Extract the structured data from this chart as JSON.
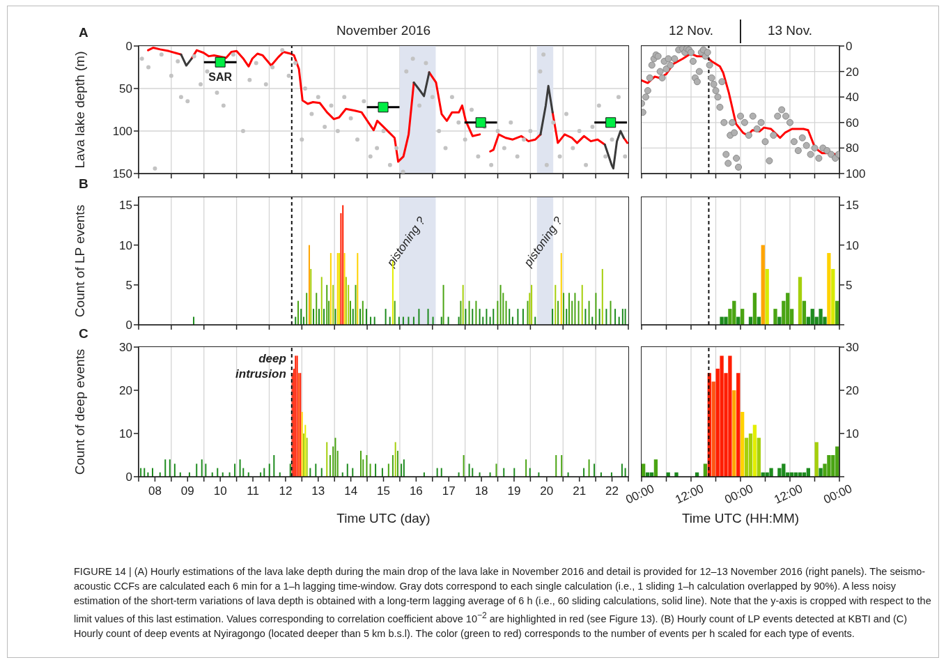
{
  "chart_data": [
    {
      "type": "line",
      "title": "November 2016",
      "ylabel": "Lava lake depth (m)",
      "annotations": [
        "A"
      ],
      "xlim": [
        8,
        23
      ],
      "xticks": [
        {
          "value": 8,
          "label": null
        },
        {
          "value": 9,
          "label": null
        },
        {
          "value": 10,
          "label": null
        },
        {
          "value": 11,
          "label": null
        },
        {
          "value": 12,
          "label": null
        },
        {
          "value": 13,
          "label": null
        },
        {
          "value": 14,
          "label": null
        },
        {
          "value": 15,
          "label": null
        },
        {
          "value": 16,
          "label": null
        },
        {
          "value": 17,
          "label": null
        },
        {
          "value": 18,
          "label": null
        },
        {
          "value": 19,
          "label": null
        },
        {
          "value": 20,
          "label": null
        },
        {
          "value": 21,
          "label": null
        },
        {
          "value": 22,
          "label": null
        },
        {
          "value": 23,
          "label": null
        }
      ],
      "ylim": [
        150,
        0
      ],
      "yticks": [
        0,
        50,
        100,
        150
      ],
      "grid": true,
      "tick_labels": "y",
      "bands": [
        {
          "axis": "x",
          "from": 16.0,
          "to": 17.1,
          "color": "#dfe4f0"
        },
        {
          "axis": "x",
          "from": 20.2,
          "to": 20.7,
          "color": "#dfe4f0"
        }
      ],
      "ref_lines": [
        {
          "axis": "x",
          "value": 12.69,
          "line_style": "dashed",
          "color": "#111111"
        }
      ],
      "series": [
        {
          "type": "scatter",
          "marker": "circle",
          "color": "#c3c3c3",
          "x": [
            8.1,
            8.3,
            8.5,
            8.7,
            9.0,
            9.2,
            9.3,
            9.5,
            9.7,
            9.9,
            10.1,
            10.4,
            10.6,
            10.9,
            11.2,
            11.4,
            11.6,
            11.9,
            12.1,
            12.4,
            12.6,
            12.8,
            13.0,
            13.1,
            13.3,
            13.5,
            13.7,
            13.9,
            14.1,
            14.3,
            14.5,
            14.7,
            14.9,
            15.1,
            15.3,
            15.5,
            15.7,
            15.9,
            16.1,
            16.2,
            16.4,
            16.6,
            16.8,
            17.0,
            17.2,
            17.4,
            17.6,
            17.8,
            18.0,
            18.2,
            18.4,
            18.6,
            18.8,
            19.0,
            19.2,
            19.4,
            19.6,
            19.8,
            20.0,
            20.3,
            20.4,
            20.5,
            20.7,
            20.9,
            21.1,
            21.3,
            21.5,
            21.7,
            21.9,
            22.1,
            22.3,
            22.5,
            22.7,
            22.9
          ],
          "values": [
            15,
            25,
            144,
            10,
            35,
            18,
            60,
            65,
            12,
            45,
            30,
            55,
            70,
            10,
            100,
            40,
            20,
            45,
            25,
            5,
            35,
            20,
            110,
            50,
            80,
            60,
            95,
            70,
            100,
            60,
            85,
            110,
            65,
            130,
            120,
            100,
            140,
            120,
            148,
            30,
            15,
            70,
            20,
            60,
            100,
            120,
            60,
            90,
            110,
            75,
            130,
            95,
            140,
            100,
            120,
            90,
            130,
            110,
            100,
            30,
            10,
            140,
            90,
            130,
            80,
            120,
            100,
            140,
            95,
            70,
            130,
            110,
            60,
            130
          ]
        },
        {
          "color": "#ff0000",
          "x": [
            8.29,
            8.45,
            8.66,
            8.93,
            9.3,
            9.46,
            9.62,
            9.78,
            9.99,
            10.15,
            10.31,
            10.68,
            10.84,
            11.0,
            11.21,
            11.37,
            11.48,
            11.64,
            11.8,
            12.06,
            12.28,
            12.44,
            12.65,
            12.76,
            12.91,
            13.02,
            13.18,
            13.34,
            13.55,
            13.77,
            13.98,
            14.14,
            14.35,
            14.62,
            14.83,
            15.04,
            15.2,
            15.31,
            15.47,
            15.68,
            15.84,
            15.95,
            16.11,
            16.27,
            16.43,
            16.59,
            16.74,
            16.9,
            17.11,
            17.28,
            17.44,
            17.6,
            17.81,
            17.91,
            18.02,
            18.23,
            18.45,
            18.55,
            18.77,
            18.87,
            19.03,
            19.24,
            19.46,
            19.72,
            19.94,
            20.15,
            20.31,
            20.47,
            20.55,
            20.68,
            20.84,
            21.05,
            21.27,
            21.43,
            21.64,
            21.85,
            22.06,
            22.28,
            22.49,
            22.54,
            22.65,
            22.76,
            22.86,
            22.97
          ],
          "values": [
            5,
            2,
            4,
            6,
            10,
            null,
            15,
            5,
            8,
            12,
            11,
            14,
            7,
            6,
            15,
            24,
            15,
            9,
            11,
            23,
            13,
            7,
            9,
            11,
            27,
            64,
            68,
            66,
            67,
            78,
            86,
            84,
            74,
            76,
            78,
            90,
            99,
            88,
            94,
            102,
            108,
            136,
            130,
            104,
            43,
            null,
            null,
            31,
            43,
            80,
            88,
            78,
            78,
            70,
            88,
            106,
            104,
            null,
            124,
            122,
            104,
            108,
            110,
            106,
            112,
            110,
            104,
            null,
            null,
            78,
            114,
            104,
            108,
            114,
            106,
            112,
            110,
            116,
            null,
            null,
            null,
            null,
            108,
            114
          ]
        },
        {
          "color": "#3a3a3a",
          "x": [
            9.3,
            9.46,
            9.62,
            13.0,
            16.43,
            16.59,
            16.74,
            16.9,
            18.0,
            20.31,
            20.47,
            20.55,
            20.68,
            21.0,
            22.28,
            22.49,
            22.54,
            22.65,
            22.76,
            22.86
          ],
          "values": [
            10,
            23,
            15,
            null,
            43,
            51,
            59,
            31,
            null,
            104,
            70,
            47,
            78,
            null,
            116,
            140,
            144,
            112,
            100,
            108
          ]
        },
        {
          "type": "scatter",
          "name": "SAR",
          "marker": "square",
          "color": "#00ee44",
          "x": [
            10.5,
            15.49,
            18.48,
            22.46
          ],
          "values": [
            19,
            72,
            90,
            90
          ],
          "xerrors": [
            0.5,
            0.5,
            0.5,
            0.5
          ]
        }
      ]
    },
    {
      "type": "line",
      "annotations": [
        "12 Nov.",
        "13 Nov."
      ],
      "xlim": [
        "2016-11-12T00:00",
        "2016-11-14T00:00"
      ],
      "xticks": [
        {
          "value": "2016-11-12T00:00",
          "label": null
        },
        {
          "value": "2016-11-12T06:00",
          "label": null
        },
        {
          "value": "2016-11-12T12:00",
          "label": null
        },
        {
          "value": "2016-11-12T18:00",
          "label": null
        },
        {
          "value": "2016-11-13T00:00",
          "label": null
        },
        {
          "value": "2016-11-13T06:00",
          "label": null
        },
        {
          "value": "2016-11-13T12:00",
          "label": null
        },
        {
          "value": "2016-11-13T18:00",
          "label": null
        },
        {
          "value": "2016-11-14T00:00",
          "label": null
        }
      ],
      "ylim": [
        100,
        0
      ],
      "yticks": [
        0,
        20,
        40,
        60,
        80,
        100
      ],
      "grid": true,
      "tick_labels": "y",
      "ref_lines": [
        {
          "axis": "x",
          "value": "2016-11-12T16:18",
          "line_style": "dashed",
          "color": "#111111"
        }
      ],
      "series": [
        {
          "type": "scatter",
          "marker": "circle",
          "color": "#b0b0b0",
          "x": [
            "2016-11-12T00:00",
            "2016-11-12T00:18",
            "2016-11-12T01:00",
            "2016-11-12T01:30",
            "2016-11-12T02:00",
            "2016-11-12T02:30",
            "2016-11-12T03:00",
            "2016-11-12T03:30",
            "2016-11-12T04:00",
            "2016-11-12T04:30",
            "2016-11-12T05:00",
            "2016-11-12T05:30",
            "2016-11-12T06:00",
            "2016-11-12T06:30",
            "2016-11-12T07:00",
            "2016-11-12T08:00",
            "2016-11-12T09:00",
            "2016-11-12T10:00",
            "2016-11-12T10:30",
            "2016-11-12T11:00",
            "2016-11-12T11:30",
            "2016-11-12T12:00",
            "2016-11-12T12:30",
            "2016-11-12T13:00",
            "2016-11-12T13:30",
            "2016-11-12T14:00",
            "2016-11-12T14:30",
            "2016-11-12T15:00",
            "2016-11-12T15:30",
            "2016-11-12T16:00",
            "2016-11-12T16:30",
            "2016-11-12T17:00",
            "2016-11-12T17:30",
            "2016-11-12T18:00",
            "2016-11-12T18:30",
            "2016-11-12T19:00",
            "2016-11-12T19:30",
            "2016-11-12T20:00",
            "2016-11-12T20:30",
            "2016-11-12T21:00",
            "2016-11-12T21:30",
            "2016-11-12T22:00",
            "2016-11-12T22:30",
            "2016-11-12T23:00",
            "2016-11-12T23:30",
            "2016-11-13T00:00",
            "2016-11-13T01:00",
            "2016-11-13T02:00",
            "2016-11-13T03:00",
            "2016-11-13T04:00",
            "2016-11-13T05:00",
            "2016-11-13T06:00",
            "2016-11-13T07:00",
            "2016-11-13T08:00",
            "2016-11-13T09:00",
            "2016-11-13T10:00",
            "2016-11-13T11:00",
            "2016-11-13T12:00",
            "2016-11-13T13:00",
            "2016-11-13T14:00",
            "2016-11-13T15:00",
            "2016-11-13T16:00",
            "2016-11-13T17:00",
            "2016-11-13T18:00",
            "2016-11-13T19:00",
            "2016-11-13T20:00",
            "2016-11-13T21:00",
            "2016-11-13T22:00",
            "2016-11-13T23:00",
            "2016-11-13T23:48"
          ],
          "values": [
            45,
            52,
            40,
            35,
            25,
            15,
            10,
            7,
            8,
            20,
            25,
            12,
            18,
            10,
            15,
            10,
            3,
            2,
            5,
            2,
            3,
            5,
            12,
            25,
            28,
            20,
            5,
            3,
            8,
            5,
            15,
            25,
            30,
            35,
            40,
            48,
            28,
            60,
            85,
            92,
            70,
            60,
            68,
            88,
            95,
            55,
            60,
            70,
            55,
            65,
            60,
            75,
            90,
            70,
            55,
            50,
            55,
            60,
            75,
            82,
            72,
            78,
            85,
            80,
            88,
            80,
            82,
            85,
            88,
            85
          ]
        },
        {
          "color": "#ff0000",
          "x": [
            "2016-11-12T00:00",
            "2016-11-12T01:30",
            "2016-11-12T03:12",
            "2016-11-12T04:18",
            "2016-11-12T06:00",
            "2016-11-12T07:42",
            "2016-11-12T10:00",
            "2016-11-12T11:54",
            "2016-11-12T13:24",
            "2016-11-12T14:30",
            "2016-11-12T15:54",
            "2016-11-12T17:00",
            "2016-11-12T19:00",
            "2016-11-12T19:48",
            "2016-11-12T21:12",
            "2016-11-12T22:54",
            "2016-11-13T00:36",
            "2016-11-13T01:42",
            "2016-11-13T02:54",
            "2016-11-13T04:36",
            "2016-11-13T05:42",
            "2016-11-13T07:24",
            "2016-11-13T09:36",
            "2016-11-13T10:48",
            "2016-11-13T12:30",
            "2016-11-13T14:06",
            "2016-11-13T15:18",
            "2016-11-13T16:24",
            "2016-11-13T18:06",
            "2016-11-13T19:48",
            "2016-11-13T21:30",
            "2016-11-13T23:12"
          ],
          "values": [
            27,
            29,
            24,
            25,
            22,
            14,
            10,
            6,
            8,
            8,
            9,
            12,
            16,
            21,
            37,
            61,
            68,
            70,
            66,
            67,
            64,
            65,
            72,
            68,
            65,
            65,
            65,
            66,
            80,
            84,
            84,
            85
          ]
        }
      ]
    },
    {
      "type": "bar",
      "ylabel": "Count of LP events",
      "annotations": [
        "B"
      ],
      "xlim": [
        8,
        23
      ],
      "xticks": [
        {
          "value": 8,
          "label": null
        },
        {
          "value": 9,
          "label": null
        },
        {
          "value": 10,
          "label": null
        },
        {
          "value": 11,
          "label": null
        },
        {
          "value": 12,
          "label": null
        },
        {
          "value": 13,
          "label": null
        },
        {
          "value": 14,
          "label": null
        },
        {
          "value": 15,
          "label": null
        },
        {
          "value": 16,
          "label": null
        },
        {
          "value": 17,
          "label": null
        },
        {
          "value": 18,
          "label": null
        },
        {
          "value": 19,
          "label": null
        },
        {
          "value": 20,
          "label": null
        },
        {
          "value": 21,
          "label": null
        },
        {
          "value": 22,
          "label": null
        },
        {
          "value": 23,
          "label": null
        }
      ],
      "ylim": [
        0,
        16
      ],
      "yticks": [
        0,
        5,
        10,
        15
      ],
      "grid": "x",
      "tick_labels": "y",
      "bands": [
        {
          "axis": "x",
          "from": 16.0,
          "to": 17.1,
          "color": "#dfe4f0",
          "label": "pistoning ?"
        },
        {
          "axis": "x",
          "from": 20.2,
          "to": 20.7,
          "color": "#dfe4f0",
          "label": "pistoning ?"
        }
      ],
      "ref_lines": [
        {
          "axis": "x",
          "value": 12.69,
          "line_style": "dashed",
          "color": "#111111"
        }
      ],
      "series": [
        {
          "x": [
            9.69,
            12.81,
            12.89,
            12.98,
            13.06,
            13.15,
            13.23,
            13.28,
            13.36,
            13.45,
            13.53,
            13.61,
            13.68,
            13.77,
            13.83,
            13.89,
            13.96,
            14.03,
            14.1,
            14.15,
            14.2,
            14.26,
            14.31,
            14.36,
            14.43,
            14.49,
            14.57,
            14.65,
            14.71,
            14.79,
            14.87,
            14.98,
            15.11,
            15.23,
            15.57,
            15.7,
            15.79,
            15.85,
            15.98,
            16.11,
            16.27,
            16.43,
            16.59,
            16.87,
            17.02,
            17.28,
            17.34,
            17.49,
            17.81,
            17.87,
            17.94,
            18.02,
            18.13,
            18.23,
            18.34,
            18.45,
            18.55,
            18.66,
            18.77,
            18.87,
            19.0,
            19.09,
            19.17,
            19.26,
            19.36,
            19.46,
            19.62,
            19.78,
            19.92,
            19.98,
            20.04,
            20.15,
            20.68,
            20.77,
            20.85,
            20.95,
            21.02,
            21.11,
            21.19,
            21.28,
            21.37,
            21.48,
            21.59,
            21.69,
            21.8,
            21.9,
            22.01,
            22.12,
            22.21,
            22.33,
            22.46,
            22.6,
            22.72,
            22.83,
            22.91
          ],
          "values": [
            1,
            1,
            3,
            2,
            1,
            4,
            10,
            7,
            2,
            4,
            2,
            6,
            2,
            5,
            3,
            9,
            5,
            2,
            9,
            9,
            14,
            15,
            9,
            6,
            5,
            3,
            2,
            5,
            9,
            2,
            3,
            2,
            1,
            1,
            2,
            1,
            8,
            3,
            1,
            1,
            1,
            1,
            2,
            2,
            1,
            1,
            5,
            1,
            1,
            3,
            5,
            2,
            3,
            2,
            3,
            2,
            1,
            2,
            1,
            2,
            3,
            5,
            4,
            3,
            2,
            1,
            2,
            2,
            3,
            4,
            5,
            1,
            2,
            5,
            3,
            9,
            4,
            2,
            4,
            3,
            4,
            3,
            5,
            2,
            3,
            1,
            4,
            2,
            7,
            2,
            3,
            2,
            1,
            2,
            2
          ],
          "colors": [
            "#1e8b1e",
            "#1e8b1e",
            "#4aa413",
            "#1e8b1e",
            "#1e8b1e",
            "#4aa413",
            "#ffa400",
            "#a5cf0c",
            "#1e8b1e",
            "#4aa413",
            "#1e8b1e",
            "#a5cf0c",
            "#1e8b1e",
            "#4aa413",
            "#4aa413",
            "#ffd200",
            "#a5cf0c",
            "#1e8b1e",
            "#ffd200",
            "#e3ee00",
            "#ff1d00",
            "#ff1d00",
            "#ffd200",
            "#a5cf0c",
            "#a5cf0c",
            "#4aa413",
            "#1e8b1e",
            "#4aa413",
            "#ffd200",
            "#1e8b1e",
            "#4aa413",
            "#1e8b1e",
            "#1e8b1e",
            "#1e8b1e",
            "#1e8b1e",
            "#1e8b1e",
            "#e3ee00",
            "#4aa413",
            "#1e8b1e",
            "#1e8b1e",
            "#1e8b1e",
            "#1e8b1e",
            "#1e8b1e",
            "#1e8b1e",
            "#1e8b1e",
            "#1e8b1e",
            "#4aa413",
            "#1e8b1e",
            "#1e8b1e",
            "#4aa413",
            "#a5cf0c",
            "#1e8b1e",
            "#4aa413",
            "#1e8b1e",
            "#4aa413",
            "#1e8b1e",
            "#1e8b1e",
            "#1e8b1e",
            "#1e8b1e",
            "#1e8b1e",
            "#4aa413",
            "#4aa413",
            "#4aa413",
            "#4aa413",
            "#1e8b1e",
            "#1e8b1e",
            "#1e8b1e",
            "#1e8b1e",
            "#4aa413",
            "#a5cf0c",
            "#a5cf0c",
            "#1e8b1e",
            "#1e8b1e",
            "#a5cf0c",
            "#4aa413",
            "#ffd200",
            "#4aa413",
            "#1e8b1e",
            "#4aa413",
            "#4aa413",
            "#4aa413",
            "#4aa413",
            "#a5cf0c",
            "#1e8b1e",
            "#4aa413",
            "#1e8b1e",
            "#4aa413",
            "#1e8b1e",
            "#a5cf0c",
            "#1e8b1e",
            "#4aa413",
            "#1e8b1e",
            "#1e8b1e",
            "#1e8b1e",
            "#1e8b1e"
          ]
        }
      ]
    },
    {
      "type": "bar",
      "xlim": [
        "2016-11-12T00:00",
        "2016-11-14T00:00"
      ],
      "xticks": [
        {
          "value": "2016-11-12T00:00",
          "label": null
        },
        {
          "value": "2016-11-12T06:00",
          "label": null
        },
        {
          "value": "2016-11-12T12:00",
          "label": null
        },
        {
          "value": "2016-11-12T18:00",
          "label": null
        },
        {
          "value": "2016-11-13T00:00",
          "label": null
        },
        {
          "value": "2016-11-13T06:00",
          "label": null
        },
        {
          "value": "2016-11-13T12:00",
          "label": null
        },
        {
          "value": "2016-11-13T18:00",
          "label": null
        },
        {
          "value": "2016-11-14T00:00",
          "label": null
        }
      ],
      "ylim": [
        0,
        16
      ],
      "yticks": [
        {
          "value": 0,
          "label": null
        },
        5,
        10,
        15
      ],
      "grid": "x",
      "tick_labels": "y",
      "ref_lines": [
        {
          "axis": "x",
          "value": "2016-11-12T16:18",
          "line_style": "dashed",
          "color": "#111111"
        }
      ],
      "series": [
        {
          "x": [
            "2016-11-12T19:30",
            "2016-11-12T20:30",
            "2016-11-12T21:30",
            "2016-11-12T22:30",
            "2016-11-12T23:30",
            "2016-11-13T00:30",
            "2016-11-13T02:30",
            "2016-11-13T03:30",
            "2016-11-13T04:30",
            "2016-11-13T05:30",
            "2016-11-13T06:30",
            "2016-11-13T08:30",
            "2016-11-13T09:30",
            "2016-11-13T10:30",
            "2016-11-13T11:30",
            "2016-11-13T12:30",
            "2016-11-13T14:30",
            "2016-11-13T15:30",
            "2016-11-13T16:30",
            "2016-11-13T17:30",
            "2016-11-13T18:30",
            "2016-11-13T19:30",
            "2016-11-13T20:30",
            "2016-11-13T21:30",
            "2016-11-13T22:30",
            "2016-11-13T23:30"
          ],
          "values": [
            1,
            1,
            2,
            3,
            1,
            2,
            1,
            4,
            1,
            10,
            7,
            2,
            1,
            3,
            4,
            2,
            6,
            3,
            1,
            2,
            1,
            2,
            1,
            9,
            7,
            3
          ],
          "colors": [
            "#1e8b1e",
            "#1e8b1e",
            "#4aa413",
            "#4aa413",
            "#1e8b1e",
            "#4aa413",
            "#1e8b1e",
            "#4aa413",
            "#1e8b1e",
            "#ffa400",
            "#d8ea00",
            "#4aa413",
            "#1e8b1e",
            "#4aa413",
            "#4aa413",
            "#4aa413",
            "#a5cf0c",
            "#4aa413",
            "#1e8b1e",
            "#1e8b1e",
            "#1e8b1e",
            "#1e8b1e",
            "#1e8b1e",
            "#ffd200",
            "#d8ea00",
            "#4aa413"
          ]
        }
      ]
    },
    {
      "type": "bar",
      "xlabel": "Time UTC (day)",
      "ylabel": "Count of deep events",
      "annotations": [
        "C",
        {
          "text": "deep intrusion",
          "x": 12.69,
          "y": 28
        },
        "FIGURE 14 | (A) Hourly estimations of the lava lake depth during the main drop of the lava lake in November 2016 and detail is provided for 12–13 November 2016 (right panels). The seismo-acoustic CCFs are calculated each 6 min for a 1–h lagging time-window. Gray dots correspond to each single calculation (i.e., 1 sliding 1–h calculation overlapped by 90%). A less noisy estimation of the short-term variations of lava depth is obtained with a long-term lagging average of 6 h (i.e., 60 sliding calculations, solid line). Note that the y-axis is cropped with respect to the limit values of this last estimation. Values corresponding to correlation coefficient above 10$^{−2}$ are highlighted in red (see Figure 13). (B) Hourly count of LP events detected at KBTI and (C) Hourly count of deep events at Nyiragongo (located deeper than 5 km b.s.l). The color (green to red) corresponds to the number of events per h scaled for each type of events."
      ],
      "xlim": [
        8,
        23
      ],
      "xticks": [
        {
          "value": 8,
          "label": null
        },
        {
          "value": 8.5,
          "label": "08"
        },
        {
          "value": 9,
          "label": null
        },
        {
          "value": 9.5,
          "label": "09"
        },
        {
          "value": 10,
          "label": null
        },
        {
          "value": 10.5,
          "label": "10"
        },
        {
          "value": 11,
          "label": null
        },
        {
          "value": 11.5,
          "label": "11"
        },
        {
          "value": 12,
          "label": null
        },
        {
          "value": 12.5,
          "label": "12"
        },
        {
          "value": 13,
          "label": null
        },
        {
          "value": 13.5,
          "label": "13"
        },
        {
          "value": 14,
          "label": null
        },
        {
          "value": 14.5,
          "label": "14"
        },
        {
          "value": 15,
          "label": null
        },
        {
          "value": 15.5,
          "label": "15"
        },
        {
          "value": 16,
          "label": null
        },
        {
          "value": 16.5,
          "label": "16"
        },
        {
          "value": 17,
          "label": null
        },
        {
          "value": 17.5,
          "label": "17"
        },
        {
          "value": 18,
          "label": null
        },
        {
          "value": 18.5,
          "label": "18"
        },
        {
          "value": 19,
          "label": null
        },
        {
          "value": 19.5,
          "label": "19"
        },
        {
          "value": 20,
          "label": null
        },
        {
          "value": 20.5,
          "label": "20"
        },
        {
          "value": 21,
          "label": null
        },
        {
          "value": 21.5,
          "label": "21"
        },
        {
          "value": 22,
          "label": null
        },
        {
          "value": 22.5,
          "label": "22"
        },
        {
          "value": 23,
          "label": null
        }
      ],
      "ylim": [
        0,
        30
      ],
      "yticks": [
        0,
        10,
        20,
        30
      ],
      "grid": "x",
      "ref_lines": [
        {
          "axis": "x",
          "value": 12.69,
          "line_style": "dashed",
          "color": "#111111"
        }
      ],
      "series": [
        {
          "x": [
            8.07,
            8.18,
            8.29,
            8.43,
            8.66,
            8.82,
            8.96,
            9.11,
            9.28,
            9.56,
            9.78,
            9.94,
            10.06,
            10.26,
            10.42,
            10.58,
            10.79,
            10.95,
            11.11,
            11.21,
            11.37,
            11.74,
            11.85,
            12.01,
            12.15,
            12.33,
            12.65,
            12.71,
            12.76,
            12.81,
            12.86,
            12.91,
            12.96,
            13.01,
            13.06,
            13.11,
            13.16,
            13.26,
            13.43,
            13.61,
            13.77,
            13.87,
            13.96,
            14.03,
            14.1,
            14.25,
            14.4,
            14.56,
            14.81,
            14.88,
            14.99,
            15.1,
            15.26,
            15.47,
            15.66,
            15.79,
            15.87,
            15.94,
            16.05,
            16.13,
            16.75,
            17.15,
            17.28,
            17.81,
            17.96,
            18.13,
            18.23,
            18.45,
            18.77,
            18.96,
            19.19,
            19.51,
            19.87,
            19.99,
            20.26,
            20.79,
            20.96,
            21.16,
            21.64,
            21.8,
            21.96,
            22.17,
            22.49,
            22.81,
            22.91
          ],
          "values": [
            2,
            2,
            1,
            2,
            1,
            4,
            4,
            3,
            1,
            1,
            3,
            4,
            3,
            1,
            2,
            1,
            1,
            3,
            4,
            2,
            1,
            1,
            2,
            3,
            5,
            1,
            3,
            24,
            25,
            28,
            28,
            24,
            24,
            15,
            10,
            12,
            9,
            2,
            3,
            2,
            8,
            5,
            7,
            9,
            6,
            1,
            3,
            2,
            6,
            4,
            5,
            3,
            3,
            2,
            3,
            5,
            8,
            6,
            3,
            4,
            1,
            2,
            2,
            1,
            5,
            3,
            2,
            1,
            1,
            3,
            2,
            2,
            4,
            2,
            1,
            5,
            5,
            1,
            2,
            4,
            3,
            1,
            1,
            3,
            2
          ],
          "colors": [
            "#1e8b1e",
            "#1e8b1e",
            "#1e8b1e",
            "#1e8b1e",
            "#1e8b1e",
            "#1e8b1e",
            "#1e8b1e",
            "#1e8b1e",
            "#1e8b1e",
            "#1e8b1e",
            "#1e8b1e",
            "#1e8b1e",
            "#1e8b1e",
            "#1e8b1e",
            "#1e8b1e",
            "#1e8b1e",
            "#1e8b1e",
            "#1e8b1e",
            "#1e8b1e",
            "#1e8b1e",
            "#1e8b1e",
            "#1e8b1e",
            "#1e8b1e",
            "#1e8b1e",
            "#1e8b1e",
            "#1e8b1e",
            "#1e8b1e",
            "#ff1d00",
            "#ff1d00",
            "#ff1d00",
            "#ff1d00",
            "#ff5514",
            "#ff1d00",
            "#ffd200",
            "#a5cf0c",
            "#e3ee00",
            "#a5cf0c",
            "#1e8b1e",
            "#1e8b1e",
            "#1e8b1e",
            "#a5cf0c",
            "#4aa413",
            "#4aa413",
            "#4aa413",
            "#4aa413",
            "#1e8b1e",
            "#1e8b1e",
            "#1e8b1e",
            "#4aa413",
            "#4aa413",
            "#4aa413",
            "#4aa413",
            "#1e8b1e",
            "#1e8b1e",
            "#4aa413",
            "#4aa413",
            "#a5cf0c",
            "#4aa413",
            "#1e8b1e",
            "#1e8b1e",
            "#1e8b1e",
            "#1e8b1e",
            "#1e8b1e",
            "#1e8b1e",
            "#4aa413",
            "#1e8b1e",
            "#1e8b1e",
            "#1e8b1e",
            "#1e8b1e",
            "#4aa413",
            "#1e8b1e",
            "#1e8b1e",
            "#4aa413",
            "#1e8b1e",
            "#1e8b1e",
            "#4aa413",
            "#4aa413",
            "#1e8b1e",
            "#1e8b1e",
            "#4aa413",
            "#1e8b1e",
            "#1e8b1e",
            "#1e8b1e",
            "#1e8b1e",
            "#1e8b1e"
          ]
        }
      ]
    },
    {
      "type": "bar",
      "xlabel": "Time UTC (HH:MM)",
      "xlim": [
        "2016-11-12T00:00",
        "2016-11-14T00:00"
      ],
      "xticks": [
        {
          "value": "2016-11-12T00:00",
          "label": "00:00"
        },
        {
          "value": "2016-11-12T06:00",
          "label": null
        },
        {
          "value": "2016-11-12T12:00",
          "label": "12:00"
        },
        {
          "value": "2016-11-12T18:00",
          "label": null
        },
        {
          "value": "2016-11-13T00:00",
          "label": "00:00"
        },
        {
          "value": "2016-11-13T06:00",
          "label": null
        },
        {
          "value": "2016-11-13T12:00",
          "label": "12:00"
        },
        {
          "value": "2016-11-13T18:00",
          "label": null
        },
        {
          "value": "2016-11-14T00:00",
          "label": "00:00"
        }
      ],
      "ylim": [
        0,
        30
      ],
      "yticks": [
        {
          "value": 0,
          "label": null
        },
        10,
        20,
        30
      ],
      "grid": "x",
      "ref_lines": [
        {
          "axis": "x",
          "value": "2016-11-12T16:18",
          "line_style": "dashed",
          "color": "#111111"
        }
      ],
      "series": [
        {
          "x": [
            "2016-11-12T00:30",
            "2016-11-12T01:30",
            "2016-11-12T02:30",
            "2016-11-12T03:30",
            "2016-11-12T06:30",
            "2016-11-12T08:30",
            "2016-11-12T13:30",
            "2016-11-12T15:30",
            "2016-11-12T16:30",
            "2016-11-12T17:30",
            "2016-11-12T18:30",
            "2016-11-12T19:30",
            "2016-11-12T20:30",
            "2016-11-12T21:30",
            "2016-11-12T22:30",
            "2016-11-12T23:30",
            "2016-11-13T00:30",
            "2016-11-13T01:30",
            "2016-11-13T02:30",
            "2016-11-13T03:30",
            "2016-11-13T04:30",
            "2016-11-13T05:30",
            "2016-11-13T06:30",
            "2016-11-13T07:30",
            "2016-11-13T09:30",
            "2016-11-13T10:30",
            "2016-11-13T11:30",
            "2016-11-13T12:30",
            "2016-11-13T13:30",
            "2016-11-13T14:30",
            "2016-11-13T15:30",
            "2016-11-13T16:30",
            "2016-11-13T18:30",
            "2016-11-13T19:30",
            "2016-11-13T20:30",
            "2016-11-13T21:30",
            "2016-11-13T22:30",
            "2016-11-13T23:30"
          ],
          "values": [
            3,
            1,
            1,
            4,
            1,
            1,
            1,
            3,
            24,
            22,
            25,
            28,
            24,
            28,
            20,
            24,
            15,
            9,
            10,
            12,
            9,
            1,
            1,
            2,
            2,
            3,
            1,
            1,
            1,
            1,
            1,
            2,
            8,
            2,
            3,
            5,
            5,
            7
          ],
          "colors": [
            "#4aa413",
            "#1e8b1e",
            "#1e8b1e",
            "#4aa413",
            "#1e8b1e",
            "#1e8b1e",
            "#1e8b1e",
            "#4aa413",
            "#ff1d00",
            "#ff5514",
            "#ff1d00",
            "#ff1d00",
            "#ff1d00",
            "#ff1d00",
            "#ffa400",
            "#ff1d00",
            "#ffd200",
            "#a5cf0c",
            "#a5cf0c",
            "#e3ee00",
            "#a5cf0c",
            "#1e8b1e",
            "#1e8b1e",
            "#1e8b1e",
            "#1e8b1e",
            "#1e8b1e",
            "#1e8b1e",
            "#1e8b1e",
            "#1e8b1e",
            "#1e8b1e",
            "#1e8b1e",
            "#1e8b1e",
            "#a5cf0c",
            "#1e8b1e",
            "#4aa413",
            "#4aa413",
            "#4aa413",
            "#4aa413"
          ]
        }
      ]
    }
  ]
}
